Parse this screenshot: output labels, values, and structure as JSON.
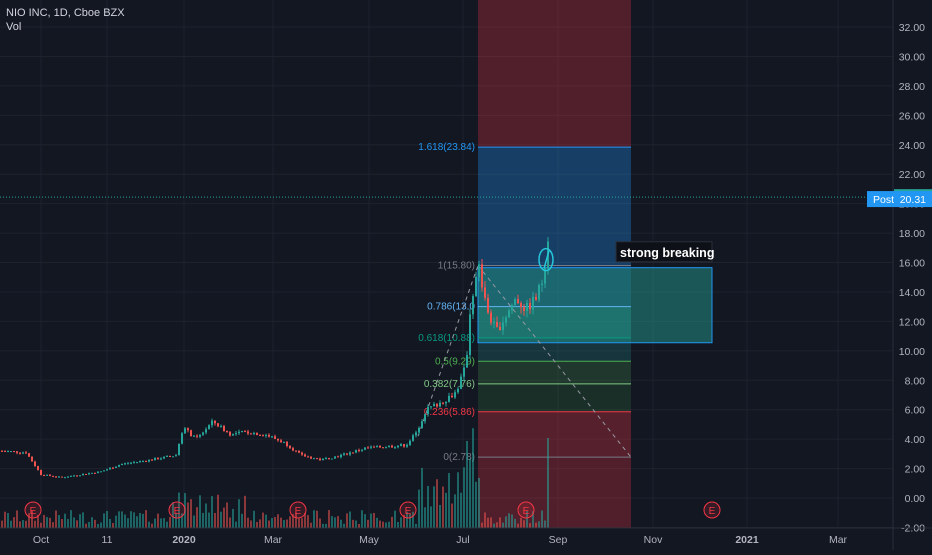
{
  "legend": {
    "symbol_line": "NIO INC, 1D, Cboe BZX",
    "volume_label": "Vol"
  },
  "chart_data": {
    "type": "candlestick",
    "symbol": "NIO INC",
    "interval": "1D",
    "exchange": "Cboe BZX",
    "ylim": [
      -2.0,
      33.5
    ],
    "y_ticks": [
      "32.00",
      "30.00",
      "28.00",
      "26.00",
      "24.00",
      "22.00",
      "20.00",
      "18.00",
      "16.00",
      "14.00",
      "12.00",
      "10.00",
      "8.00",
      "6.00",
      "4.00",
      "2.00",
      "0.00",
      "-2.00"
    ],
    "x_ticks": [
      "Oct",
      "11",
      "2020",
      "Mar",
      "May",
      "Jul",
      "Sep",
      "Nov",
      "2021",
      "Mar"
    ],
    "last_price": {
      "label": "20.44",
      "value": 20.44,
      "color": "#26a69a"
    },
    "post_price": {
      "tag": "Post",
      "label": "20.31",
      "value": 20.31,
      "color": "#2196f3"
    },
    "earnings_markers": [
      "E",
      "E",
      "E",
      "E",
      "E",
      "E"
    ],
    "fib_levels": [
      {
        "label": "1.618(23.84)",
        "ratio": 1.618,
        "value": 23.84,
        "color": "#2196f3"
      },
      {
        "label": "1(15.80)",
        "ratio": 1,
        "value": 15.8,
        "color": "#787b86"
      },
      {
        "label": "0.786(13.0",
        "ratio": 0.786,
        "value": 13.0,
        "color": "#64b5f6"
      },
      {
        "label": "0.618(10.88)",
        "ratio": 0.618,
        "value": 10.88,
        "color": "#089981"
      },
      {
        "label": "0.5(9.29)",
        "ratio": 0.5,
        "value": 9.29,
        "color": "#4caf50"
      },
      {
        "label": "0.382(7.76)",
        "ratio": 0.382,
        "value": 7.76,
        "color": "#81c784"
      },
      {
        "label": "0.236(5.86)",
        "ratio": 0.236,
        "value": 5.86,
        "color": "#f23645"
      },
      {
        "label": "0(2.78)",
        "ratio": 0,
        "value": 2.78,
        "color": "#787b86"
      }
    ],
    "annotation": {
      "text": "strong breaking"
    },
    "colors": {
      "up": "#26a69a",
      "down": "#ef5350",
      "background": "#131722",
      "grid": "#1e222d",
      "axis_text": "#b2b5be"
    }
  }
}
